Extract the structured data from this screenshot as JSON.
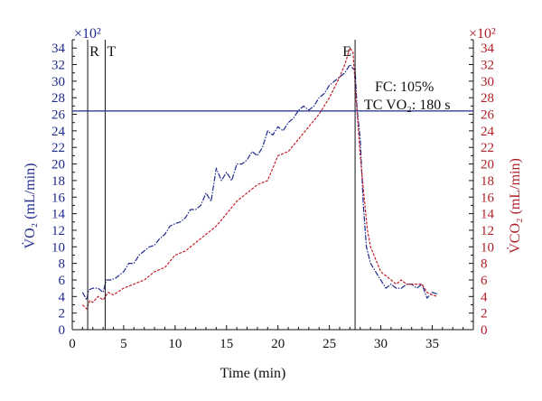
{
  "chart_data": {
    "type": "line",
    "xlabel": "Time (min)",
    "ylabel_left": "V̇O₂ (mL/min)",
    "ylabel_right": "V̇CO₂ (mL/min)",
    "y_multiplier_left": "×10²",
    "y_multiplier_right": "×10²",
    "xlim": [
      0,
      39
    ],
    "ylim": [
      0,
      35
    ],
    "x_ticks": [
      0,
      5,
      10,
      15,
      20,
      25,
      30,
      35
    ],
    "y_ticks": [
      0,
      2,
      4,
      6,
      8,
      10,
      12,
      14,
      16,
      18,
      20,
      22,
      24,
      26,
      28,
      30,
      32,
      34
    ],
    "colors": {
      "vo2": "#1f2a8c",
      "vco2": "#c0202a",
      "axis": "#111111"
    },
    "series": [
      {
        "key": "vo2",
        "x": [
          1.0,
          1.4,
          1.6,
          2.0,
          2.5,
          3.0,
          3.3,
          3.7,
          4.2,
          5.0,
          5.5,
          6.0,
          6.5,
          7.0,
          7.5,
          8.0,
          8.5,
          9.0,
          9.5,
          10.0,
          10.5,
          11.0,
          11.5,
          12.0,
          12.5,
          13.0,
          13.5,
          14.0,
          14.5,
          15.0,
          15.5,
          16.0,
          16.5,
          17.0,
          17.5,
          18.0,
          18.5,
          19.0,
          19.5,
          20.0,
          20.5,
          21.0,
          21.5,
          22.0,
          22.5,
          23.0,
          23.5,
          24.0,
          24.5,
          25.0,
          25.5,
          26.0,
          26.5,
          27.0,
          27.3,
          27.5,
          27.7,
          28.0,
          28.3,
          28.6,
          29.0,
          29.5,
          30.0,
          30.5,
          31.0,
          31.5,
          32.0,
          32.5,
          33.0,
          33.5,
          34.0,
          34.5,
          35.0,
          35.5
        ],
        "y": [
          4.5,
          3.6,
          4.8,
          5.0,
          5.0,
          4.5,
          6.0,
          6.0,
          6.2,
          7.0,
          8.0,
          8.0,
          9.0,
          9.5,
          10.0,
          10.2,
          11.0,
          11.5,
          12.5,
          12.8,
          13.0,
          13.5,
          14.5,
          14.5,
          15.0,
          16.5,
          15.5,
          19.5,
          18.0,
          19.0,
          18.0,
          20.0,
          20.0,
          20.5,
          21.5,
          21.0,
          22.0,
          24.0,
          23.5,
          24.5,
          24.0,
          25.0,
          25.5,
          26.5,
          27.0,
          26.5,
          27.0,
          28.0,
          28.5,
          29.5,
          30.0,
          30.5,
          31.0,
          32.0,
          31.5,
          31.5,
          26.5,
          23.0,
          15.0,
          10.0,
          8.0,
          7.0,
          6.0,
          5.0,
          5.5,
          5.0,
          5.0,
          5.5,
          5.5,
          5.0,
          5.5,
          3.8,
          4.5,
          4.3
        ]
      },
      {
        "key": "vco2",
        "x": [
          1.0,
          1.4,
          1.7,
          2.0,
          2.5,
          3.0,
          3.5,
          4.0,
          5.0,
          6.0,
          7.0,
          8.0,
          9.0,
          10.0,
          11.0,
          12.0,
          13.0,
          14.0,
          15.0,
          16.0,
          17.0,
          18.0,
          19.0,
          20.0,
          21.0,
          22.0,
          23.0,
          24.0,
          25.0,
          26.0,
          26.5,
          27.0,
          27.3,
          27.6,
          28.0,
          28.3,
          28.7,
          29.0,
          29.5,
          30.0,
          30.5,
          31.0,
          31.5,
          32.0,
          32.5,
          33.0,
          33.5,
          34.0,
          34.5,
          35.0,
          35.5
        ],
        "y": [
          3.0,
          2.5,
          3.5,
          3.3,
          4.0,
          3.6,
          4.5,
          4.2,
          5.0,
          5.5,
          6.0,
          7.0,
          7.5,
          9.0,
          9.5,
          10.5,
          11.5,
          12.5,
          14.0,
          15.5,
          16.5,
          17.5,
          18.0,
          21.0,
          21.5,
          23.0,
          24.5,
          26.0,
          28.0,
          30.5,
          32.0,
          34.0,
          33.5,
          28.0,
          21.0,
          17.0,
          12.0,
          10.0,
          8.5,
          7.0,
          6.5,
          6.0,
          5.5,
          6.0,
          5.5,
          5.5,
          5.5,
          5.5,
          4.5,
          4.2,
          4.0
        ]
      }
    ],
    "markers": [
      {
        "label": "R",
        "x": 1.5
      },
      {
        "label": "T",
        "x": 3.2
      },
      {
        "label": "E",
        "x": 27.5
      }
    ],
    "reference_line_y": 26.4,
    "annotations": [
      "FC: 105%",
      "TC VO₂: 180 s"
    ]
  }
}
